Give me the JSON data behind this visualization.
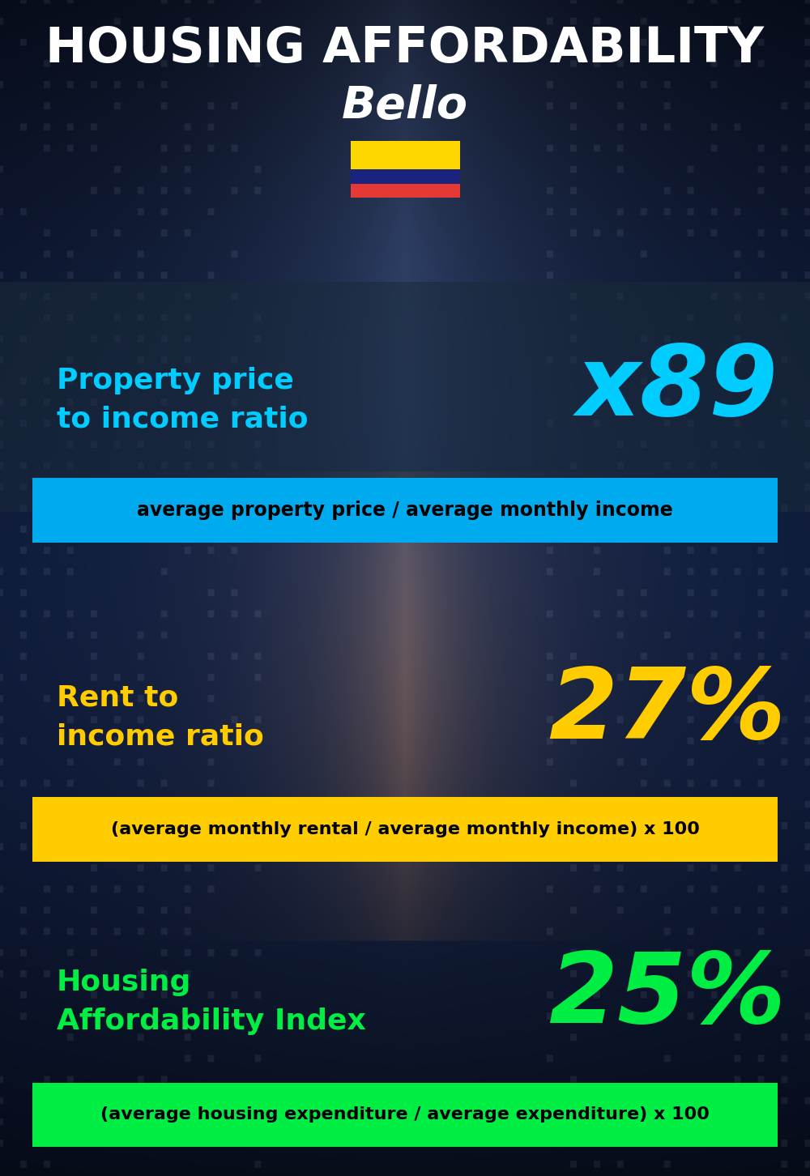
{
  "title_main": "HOUSING AFFORDABILITY",
  "title_city": "Bello",
  "bg_color": "#080f1c",
  "title_main_color": "#ffffff",
  "title_city_color": "#ffffff",
  "section1_label": "Property price\nto income ratio",
  "section1_value": "x89",
  "section1_label_color": "#00ccff",
  "section1_value_color": "#00ccff",
  "section1_banner_text": "average property price / average monthly income",
  "section1_banner_bg": "#00aaee",
  "section1_banner_text_color": "#000000",
  "section2_label": "Rent to\nincome ratio",
  "section2_value": "27%",
  "section2_label_color": "#ffcc00",
  "section2_value_color": "#ffcc00",
  "section2_banner_text": "(average monthly rental / average monthly income) x 100",
  "section2_banner_bg": "#ffcc00",
  "section2_banner_text_color": "#000000",
  "section3_label": "Housing\nAffordability Index",
  "section3_value": "25%",
  "section3_label_color": "#00ee44",
  "section3_value_color": "#00ee44",
  "section3_banner_text": "(average housing expenditure / average expenditure) x 100",
  "section3_banner_bg": "#00ee44",
  "section3_banner_text_color": "#000000",
  "flag_yellow": "#FFD700",
  "flag_blue": "#1a237e",
  "flag_red": "#e53935",
  "panel1_color": "#1a2a3a",
  "panel1_alpha": 0.55,
  "panel2_color": "#0a0f1a",
  "panel2_alpha": 0.45
}
